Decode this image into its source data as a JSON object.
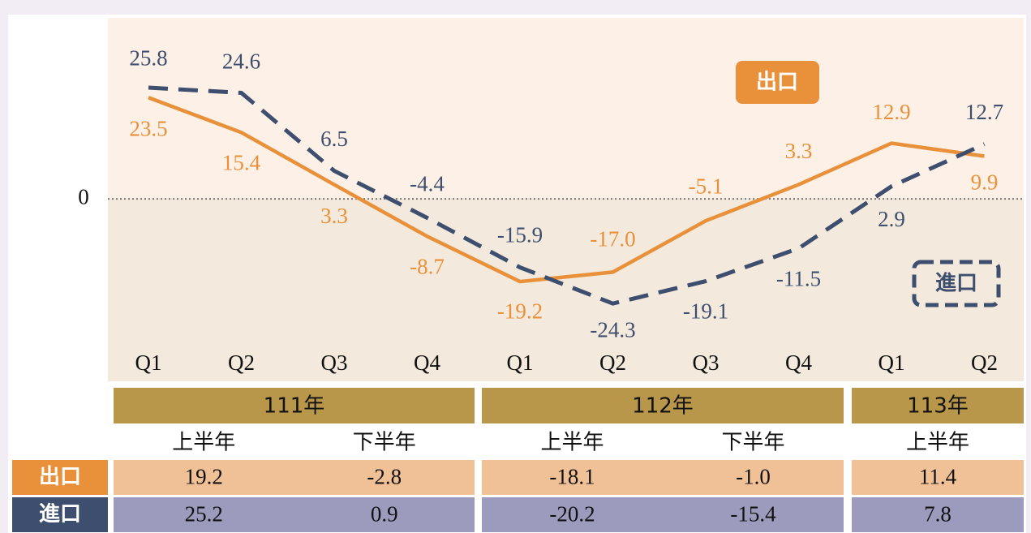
{
  "chart_data": {
    "type": "line",
    "categories": [
      "Q1",
      "Q2",
      "Q3",
      "Q4",
      "Q1",
      "Q2",
      "Q3",
      "Q4",
      "Q1",
      "Q2"
    ],
    "series": [
      {
        "name": "出口",
        "color": "#e8913a",
        "values": [
          23.5,
          15.4,
          3.3,
          -8.7,
          -19.2,
          -17.0,
          -5.1,
          3.3,
          12.9,
          9.9
        ],
        "value_labels": [
          "23.5",
          "15.4",
          "3.3",
          "-8.7",
          "-19.2",
          "-17.0",
          "-5.1",
          "3.3",
          "12.9",
          "9.9"
        ]
      },
      {
        "name": "進口",
        "color": "#3d4e6e",
        "values": [
          25.8,
          24.6,
          6.5,
          -4.4,
          -15.9,
          -24.3,
          -19.1,
          -11.5,
          2.9,
          12.7
        ]
      }
    ],
    "ylim": [
      -35,
      42
    ],
    "yticks": [
      0
    ]
  },
  "table": {
    "groups": [
      {
        "year": "111年",
        "halves": [
          "上半年",
          "下半年"
        ]
      },
      {
        "year": "112年",
        "halves": [
          "上半年",
          "下半年"
        ]
      },
      {
        "year": "113年",
        "halves": [
          "上半年"
        ]
      }
    ],
    "rows": [
      {
        "name": "出口",
        "values": [
          "19.2",
          "-2.8",
          "-18.1",
          "-1.0",
          "11.4"
        ]
      },
      {
        "name": "進口",
        "values": [
          "25.2",
          "0.9",
          "-20.2",
          "-15.4",
          "7.8"
        ]
      }
    ]
  }
}
